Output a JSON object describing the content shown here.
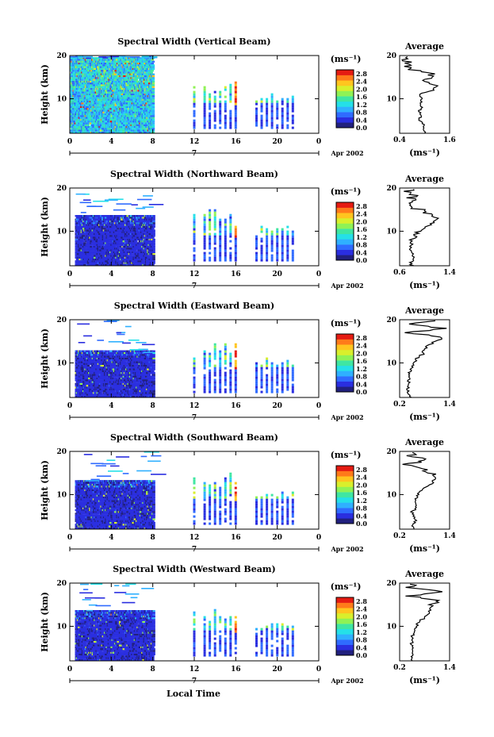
{
  "figure": {
    "xlabel": "Local Time",
    "date_label": "Apr 2002",
    "day_label": "7",
    "ylabel": "Height (km)",
    "unit_label": "(ms⁻¹)",
    "avg_title": "Average",
    "avg_xlabel": "(ms⁻¹)"
  },
  "chart_data": [
    {
      "type": "heatmap",
      "title": "Spectral Width (Vertical Beam)",
      "xlabel": "Local Time",
      "ylabel": "Height (km)",
      "x_ticks": [
        "0",
        "4",
        "8",
        "12",
        "16",
        "20",
        "0"
      ],
      "y_ticks": [
        "10",
        "20"
      ],
      "xlim": [
        0,
        24
      ],
      "ylim": [
        2,
        20
      ],
      "colorbar": {
        "label": "(ms⁻¹)",
        "ticks": [
          "0.0",
          "0.4",
          "0.8",
          "1.2",
          "1.6",
          "2.0",
          "2.4",
          "2.8"
        ],
        "range": [
          0,
          3.0
        ]
      },
      "blocks": [
        {
          "x0": 0,
          "x1": 8,
          "y0": 2,
          "y1": 19.5
        }
      ],
      "profiles": [
        12,
        13,
        13.5,
        14,
        14.5,
        15,
        15.5,
        16,
        18,
        18.5,
        19,
        19.5,
        20,
        20.5,
        21,
        21.5
      ],
      "average_profile": {
        "title": "Average",
        "xlabel": "(ms⁻¹)",
        "xlim": [
          0.4,
          1.6
        ],
        "x_ticks": [
          "0.4",
          "1.6"
        ],
        "y_ticks": [
          "10",
          "20"
        ],
        "height_km": [
          2,
          3,
          4,
          5,
          6,
          7,
          8,
          9,
          10,
          11,
          12,
          13,
          14,
          15,
          16,
          17,
          18,
          19,
          20
        ],
        "value": [
          1.0,
          0.95,
          1.0,
          0.85,
          0.9,
          0.88,
          0.92,
          0.9,
          0.95,
          0.85,
          1.2,
          1.3,
          1.0,
          1.25,
          1.1,
          0.55,
          0.6,
          0.55,
          0.6
        ]
      }
    },
    {
      "type": "heatmap",
      "title": "Spectral Width (Northward Beam)",
      "xlabel": "Local Time",
      "ylabel": "Height (km)",
      "x_ticks": [
        "0",
        "4",
        "8",
        "12",
        "16",
        "20",
        "0"
      ],
      "y_ticks": [
        "10",
        "20"
      ],
      "xlim": [
        0,
        24
      ],
      "ylim": [
        2,
        20
      ],
      "colorbar": {
        "label": "(ms⁻¹)",
        "ticks": [
          "0.0",
          "0.4",
          "0.8",
          "1.2",
          "1.6",
          "2.0",
          "2.4",
          "2.8"
        ],
        "range": [
          0,
          3.0
        ]
      },
      "blocks": [
        {
          "x0": 0.5,
          "x1": 8,
          "y0": 2,
          "y1": 13.5
        }
      ],
      "profiles": [
        12,
        13,
        13.5,
        14,
        14.5,
        15,
        15.5,
        16,
        18,
        18.5,
        19,
        19.5,
        20,
        20.5,
        21,
        21.5
      ],
      "average_profile": {
        "title": "Average",
        "xlabel": "(ms⁻¹)",
        "xlim": [
          0.6,
          1.4
        ],
        "x_ticks": [
          "0.6",
          "1.4"
        ],
        "y_ticks": [
          "10",
          "20"
        ],
        "height_km": [
          2,
          3,
          4,
          5,
          6,
          7,
          8,
          9,
          10,
          11,
          12,
          13,
          14,
          15,
          16,
          17,
          18,
          19,
          20
        ],
        "value": [
          0.8,
          0.78,
          0.82,
          0.77,
          0.8,
          0.79,
          0.8,
          0.85,
          0.9,
          1.0,
          1.15,
          1.2,
          1.1,
          0.9,
          0.75,
          0.85,
          0.8,
          0.7,
          0.75
        ]
      }
    },
    {
      "type": "heatmap",
      "title": "Spectral Width (Eastward Beam)",
      "xlabel": "Local Time",
      "ylabel": "Height (km)",
      "x_ticks": [
        "0",
        "4",
        "8",
        "12",
        "16",
        "20",
        "0"
      ],
      "y_ticks": [
        "10",
        "20"
      ],
      "xlim": [
        0,
        24
      ],
      "ylim": [
        2,
        20
      ],
      "colorbar": {
        "label": "(ms⁻¹)",
        "ticks": [
          "0.0",
          "0.4",
          "0.8",
          "1.2",
          "1.6",
          "2.0",
          "2.4",
          "2.8"
        ],
        "range": [
          0,
          3.0
        ]
      },
      "blocks": [
        {
          "x0": 0.5,
          "x1": 8,
          "y0": 2,
          "y1": 12.5
        }
      ],
      "profiles": [
        12,
        13,
        13.5,
        14,
        14.5,
        15,
        15.5,
        16,
        18,
        18.5,
        19,
        19.5,
        20,
        20.5,
        21,
        21.5
      ],
      "average_profile": {
        "title": "Average",
        "xlabel": "(ms⁻¹)",
        "xlim": [
          0.2,
          1.4
        ],
        "x_ticks": [
          "0.2",
          "1.4"
        ],
        "y_ticks": [
          "10",
          "20"
        ],
        "height_km": [
          2,
          3,
          4,
          5,
          6,
          7,
          8,
          9,
          10,
          11,
          12,
          13,
          14,
          15,
          16,
          17,
          18,
          19,
          20
        ],
        "value": [
          0.45,
          0.42,
          0.4,
          0.43,
          0.41,
          0.42,
          0.45,
          0.5,
          0.55,
          0.6,
          0.75,
          0.8,
          0.85,
          1.0,
          1.25,
          0.4,
          1.3,
          0.35,
          1.2
        ]
      }
    },
    {
      "type": "heatmap",
      "title": "Spectral Width (Southward Beam)",
      "xlabel": "Local Time",
      "ylabel": "Height (km)",
      "x_ticks": [
        "0",
        "4",
        "8",
        "12",
        "16",
        "20",
        "0"
      ],
      "y_ticks": [
        "10",
        "20"
      ],
      "xlim": [
        0,
        24
      ],
      "ylim": [
        2,
        20
      ],
      "colorbar": {
        "label": "(ms⁻¹)",
        "ticks": [
          "0.0",
          "0.4",
          "0.8",
          "1.2",
          "1.6",
          "2.0",
          "2.4",
          "2.8"
        ],
        "range": [
          0,
          3.0
        ]
      },
      "blocks": [
        {
          "x0": 0.5,
          "x1": 8,
          "y0": 2,
          "y1": 13
        }
      ],
      "profiles": [
        12,
        13,
        13.5,
        14,
        14.5,
        15,
        15.5,
        16,
        18,
        18.5,
        19,
        19.5,
        20,
        20.5,
        21,
        21.5
      ],
      "average_profile": {
        "title": "Average",
        "xlabel": "(ms⁻¹)",
        "xlim": [
          0.2,
          1.4
        ],
        "x_ticks": [
          "0.2",
          "1.4"
        ],
        "y_ticks": [
          "10",
          "20"
        ],
        "height_km": [
          2,
          3,
          4,
          5,
          6,
          7,
          8,
          9,
          10,
          11,
          12,
          13,
          14,
          15,
          16,
          17,
          18,
          19,
          20
        ],
        "value": [
          0.55,
          0.5,
          0.6,
          0.55,
          0.5,
          0.6,
          0.55,
          0.6,
          0.65,
          0.7,
          0.9,
          1.0,
          1.05,
          0.95,
          0.8,
          0.35,
          0.9,
          0.45,
          0.6
        ]
      }
    },
    {
      "type": "heatmap",
      "title": "Spectral Width (Westward Beam)",
      "xlabel": "Local Time",
      "ylabel": "Height (km)",
      "x_ticks": [
        "0",
        "4",
        "8",
        "12",
        "16",
        "20",
        "0"
      ],
      "y_ticks": [
        "10",
        "20"
      ],
      "xlim": [
        0,
        24
      ],
      "ylim": [
        2,
        20
      ],
      "colorbar": {
        "label": "(ms⁻¹)",
        "ticks": [
          "0.0",
          "0.4",
          "0.8",
          "1.2",
          "1.6",
          "2.0",
          "2.4",
          "2.8"
        ],
        "range": [
          0,
          3.0
        ]
      },
      "blocks": [
        {
          "x0": 0.5,
          "x1": 8,
          "y0": 2,
          "y1": 13.5
        }
      ],
      "profiles": [
        12,
        13,
        13.5,
        14,
        14.5,
        15,
        15.5,
        16,
        18,
        18.5,
        19,
        19.5,
        20,
        20.5,
        21,
        21.5
      ],
      "average_profile": {
        "title": "Average",
        "xlabel": "(ms⁻¹)",
        "xlim": [
          0.2,
          1.4
        ],
        "x_ticks": [
          "0.2",
          "1.4"
        ],
        "y_ticks": [
          "10",
          "20"
        ],
        "height_km": [
          2,
          3,
          4,
          5,
          6,
          7,
          8,
          9,
          10,
          11,
          12,
          13,
          14,
          15,
          16,
          17,
          18,
          19,
          20
        ],
        "value": [
          0.5,
          0.48,
          0.52,
          0.5,
          0.49,
          0.5,
          0.52,
          0.55,
          0.6,
          0.65,
          0.8,
          0.9,
          0.95,
          1.0,
          1.1,
          0.45,
          1.2,
          0.4,
          0.6
        ]
      }
    }
  ]
}
